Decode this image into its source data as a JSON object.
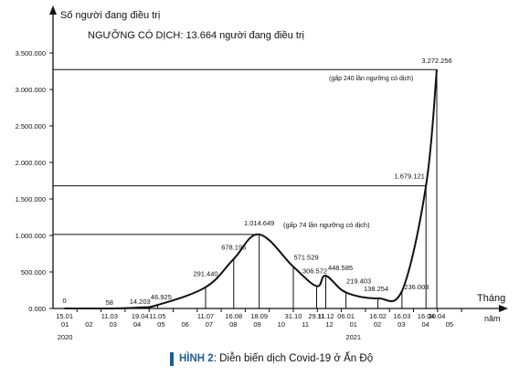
{
  "chart_data": {
    "type": "line",
    "ylabel": "Số người đang điều trị",
    "threshold_label": "NGƯỠNG CÓ DỊCH: 13.664 người đang điều trị",
    "xlabel": "Tháng",
    "xlabel2": "năm",
    "ylim": [
      0,
      3500000
    ],
    "y_ticks": [
      "0.000",
      "500.000",
      "1.000.000",
      "1.500.000",
      "2.000.000",
      "2.500.000",
      "3.000.000",
      "3.500.000"
    ],
    "months": [
      "01",
      "02",
      "03",
      "04",
      "05",
      "06",
      "07",
      "08",
      "09",
      "10",
      "11",
      "12",
      "01",
      "02",
      "03",
      "04",
      "05"
    ],
    "years": [
      {
        "label": "2020",
        "month_index": 0
      },
      {
        "label": "2021",
        "month_index": 12
      }
    ],
    "points": [
      {
        "date": "15.01",
        "value": 0,
        "label": "0",
        "month_index": 0.48
      },
      {
        "date": "11.03",
        "value": 58,
        "label": "58",
        "month_index": 2.35
      },
      {
        "date": "19.04",
        "value": 14203,
        "label": "14.203",
        "month_index": 3.62
      },
      {
        "date": "11.05",
        "value": 46925,
        "label": "46.925",
        "month_index": 4.35
      },
      {
        "date": "11.07",
        "value": 291440,
        "label": "291.440",
        "month_index": 6.35
      },
      {
        "date": "16.08",
        "value": 678195,
        "label": "678.195",
        "month_index": 7.52
      },
      {
        "date": "18.09",
        "value": 1014649,
        "label": "1.014.649",
        "month_index": 8.58
      },
      {
        "date": "31.10",
        "value": 571529,
        "label": "571.529",
        "month_index": 10.0
      },
      {
        "date": "29.11",
        "value": 306572,
        "label": "306.572",
        "month_index": 10.97
      },
      {
        "date": "11.12",
        "value": 448585,
        "label": "448.585",
        "month_index": 11.35
      },
      {
        "date": "06.01",
        "value": 219403,
        "label": "219.403",
        "month_index": 12.19
      },
      {
        "date": "16.02",
        "value": 138254,
        "label": "138.254",
        "month_index": 13.52
      },
      {
        "date": "16.03",
        "value": 236008,
        "label": "236.008",
        "month_index": 14.52
      },
      {
        "date": "16.04",
        "value": 1679121,
        "label": "1.679.121",
        "month_index": 15.52
      },
      {
        "date": "30.04",
        "value": 3272256,
        "label": "3.272.256",
        "month_index": 15.97
      }
    ],
    "annotations": [
      {
        "text": "(gấp 74 lần ngưỡng có dịch)",
        "value": 1014649
      },
      {
        "text": "(gấp 240 lần ngưỡng có dịch)",
        "value": 3272256
      }
    ],
    "reference_lines": [
      1014649,
      1679121,
      3272256
    ],
    "line_color": "#111111"
  },
  "caption": {
    "label": "HÌNH 2",
    "text": ": Diễn biến dịch Covid-19 ở Ấn Độ",
    "bar_color": "#1f5c99"
  }
}
